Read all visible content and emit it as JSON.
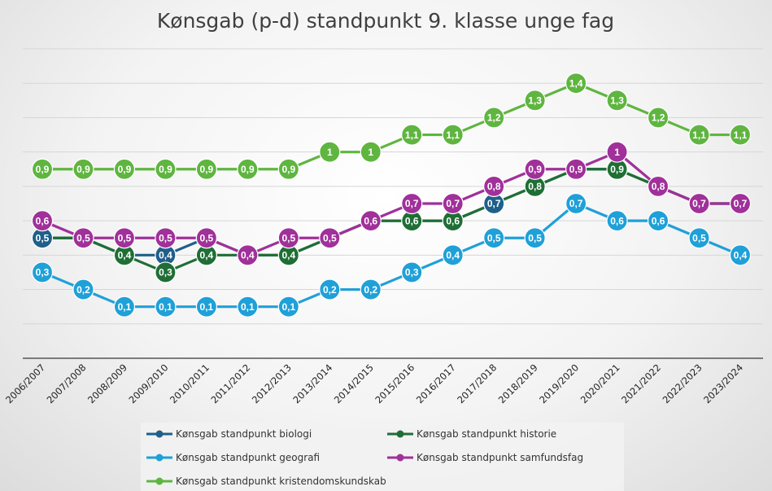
{
  "chart_data": {
    "type": "line",
    "title": "Kønsgab (p-d) standpunkt 9. klasse unge fag",
    "x": [
      "2006/2007",
      "2007/2008",
      "2008/2009",
      "2009/2010",
      "2010/2011",
      "2011/2012",
      "2012/2013",
      "2013/2014",
      "2014/2015",
      "2015/2016",
      "2016/2017",
      "2017/2018",
      "2018/2019",
      "2019/2020",
      "2020/2021",
      "2021/2022",
      "2022/2023",
      "2023/2024"
    ],
    "ylim": [
      -0.2,
      1.6
    ],
    "grid": true,
    "legend_position": "bottom",
    "series": [
      {
        "name": "Kønsgab standpunkt biologi",
        "color": "#1f5f8a",
        "values": [
          0.5,
          0.5,
          0.4,
          0.4,
          0.5,
          0.4,
          0.4,
          0.5,
          0.6,
          0.6,
          0.6,
          0.7,
          0.8,
          0.9,
          0.9,
          0.8,
          0.7,
          0.7
        ],
        "labels": [
          "0,5",
          "0,5",
          "0,4",
          "0,4",
          "0,5",
          "0,4",
          "0,4",
          "0,5",
          "0,6",
          "0,6",
          "0,6",
          "0,7",
          "0,8",
          "0,9",
          "0,9",
          "0,8",
          "0,7",
          "0,7"
        ],
        "show_labels": [
          true,
          true,
          false,
          true,
          true,
          false,
          false,
          false,
          false,
          false,
          false,
          true,
          false,
          false,
          false,
          false,
          false,
          false
        ]
      },
      {
        "name": "Kønsgab standpunkt historie",
        "color": "#1f6e35",
        "values": [
          0.5,
          0.5,
          0.4,
          0.3,
          0.4,
          0.4,
          0.4,
          0.5,
          0.6,
          0.6,
          0.6,
          0.7,
          0.8,
          0.9,
          0.9,
          0.8,
          0.7,
          0.7
        ],
        "labels": [
          "0,5",
          "0,5",
          "0,4",
          "0,3",
          "0,4",
          "0,4",
          "0,4",
          "0,5",
          "0,6",
          "0,6",
          "0,6",
          "0,7",
          "0,8",
          "0,9",
          "0,9",
          "0,8",
          "0,7",
          "0,7"
        ],
        "show_labels": [
          false,
          false,
          true,
          true,
          true,
          false,
          true,
          false,
          false,
          true,
          true,
          false,
          true,
          false,
          true,
          false,
          false,
          false
        ]
      },
      {
        "name": "Kønsgab standpunkt geografi",
        "color": "#1fa0d8",
        "values": [
          0.3,
          0.2,
          0.1,
          0.1,
          0.1,
          0.1,
          0.1,
          0.2,
          0.2,
          0.3,
          0.4,
          0.5,
          0.5,
          0.7,
          0.6,
          0.6,
          0.5,
          0.4
        ],
        "labels": [
          "0,3",
          "0,2",
          "0,1",
          "0,1",
          "0,1",
          "0,1",
          "0,1",
          "0,2",
          "0,2",
          "0,3",
          "0,4",
          "0,5",
          "0,5",
          "0,7",
          "0,6",
          "0,6",
          "0,5",
          "0,4"
        ],
        "show_labels": [
          true,
          true,
          true,
          true,
          true,
          true,
          true,
          true,
          true,
          true,
          true,
          true,
          true,
          true,
          true,
          true,
          true,
          true
        ]
      },
      {
        "name": "Kønsgab standpunkt samfundsfag",
        "color": "#a0309a",
        "values": [
          0.6,
          0.5,
          0.5,
          0.5,
          0.5,
          0.4,
          0.5,
          0.5,
          0.6,
          0.7,
          0.7,
          0.8,
          0.9,
          0.9,
          1.0,
          0.8,
          0.7,
          0.7
        ],
        "labels": [
          "0,6",
          "0,5",
          "0,5",
          "0,5",
          "0,5",
          "0,4",
          "0,5",
          "0,5",
          "0,6",
          "0,7",
          "0,7",
          "0,8",
          "0,9",
          "0,9",
          "1",
          "0,8",
          "0,7",
          "0,7"
        ],
        "show_labels": [
          true,
          true,
          true,
          true,
          true,
          true,
          true,
          true,
          true,
          true,
          true,
          true,
          true,
          true,
          true,
          true,
          true,
          true
        ]
      },
      {
        "name": "Kønsgab standpunkt kristendomskundskab",
        "color": "#5fb540",
        "values": [
          0.9,
          0.9,
          0.9,
          0.9,
          0.9,
          0.9,
          0.9,
          1.0,
          1.0,
          1.1,
          1.1,
          1.2,
          1.3,
          1.4,
          1.3,
          1.2,
          1.1,
          1.1
        ],
        "labels": [
          "0,9",
          "0,9",
          "0,9",
          "0,9",
          "0,9",
          "0,9",
          "0,9",
          "1",
          "1",
          "1,1",
          "1,1",
          "1,2",
          "1,3",
          "1,4",
          "1,3",
          "1,2",
          "1,1",
          "1,1"
        ],
        "show_labels": [
          true,
          true,
          true,
          true,
          true,
          true,
          true,
          true,
          true,
          true,
          true,
          true,
          true,
          true,
          true,
          true,
          true,
          true
        ]
      }
    ]
  }
}
